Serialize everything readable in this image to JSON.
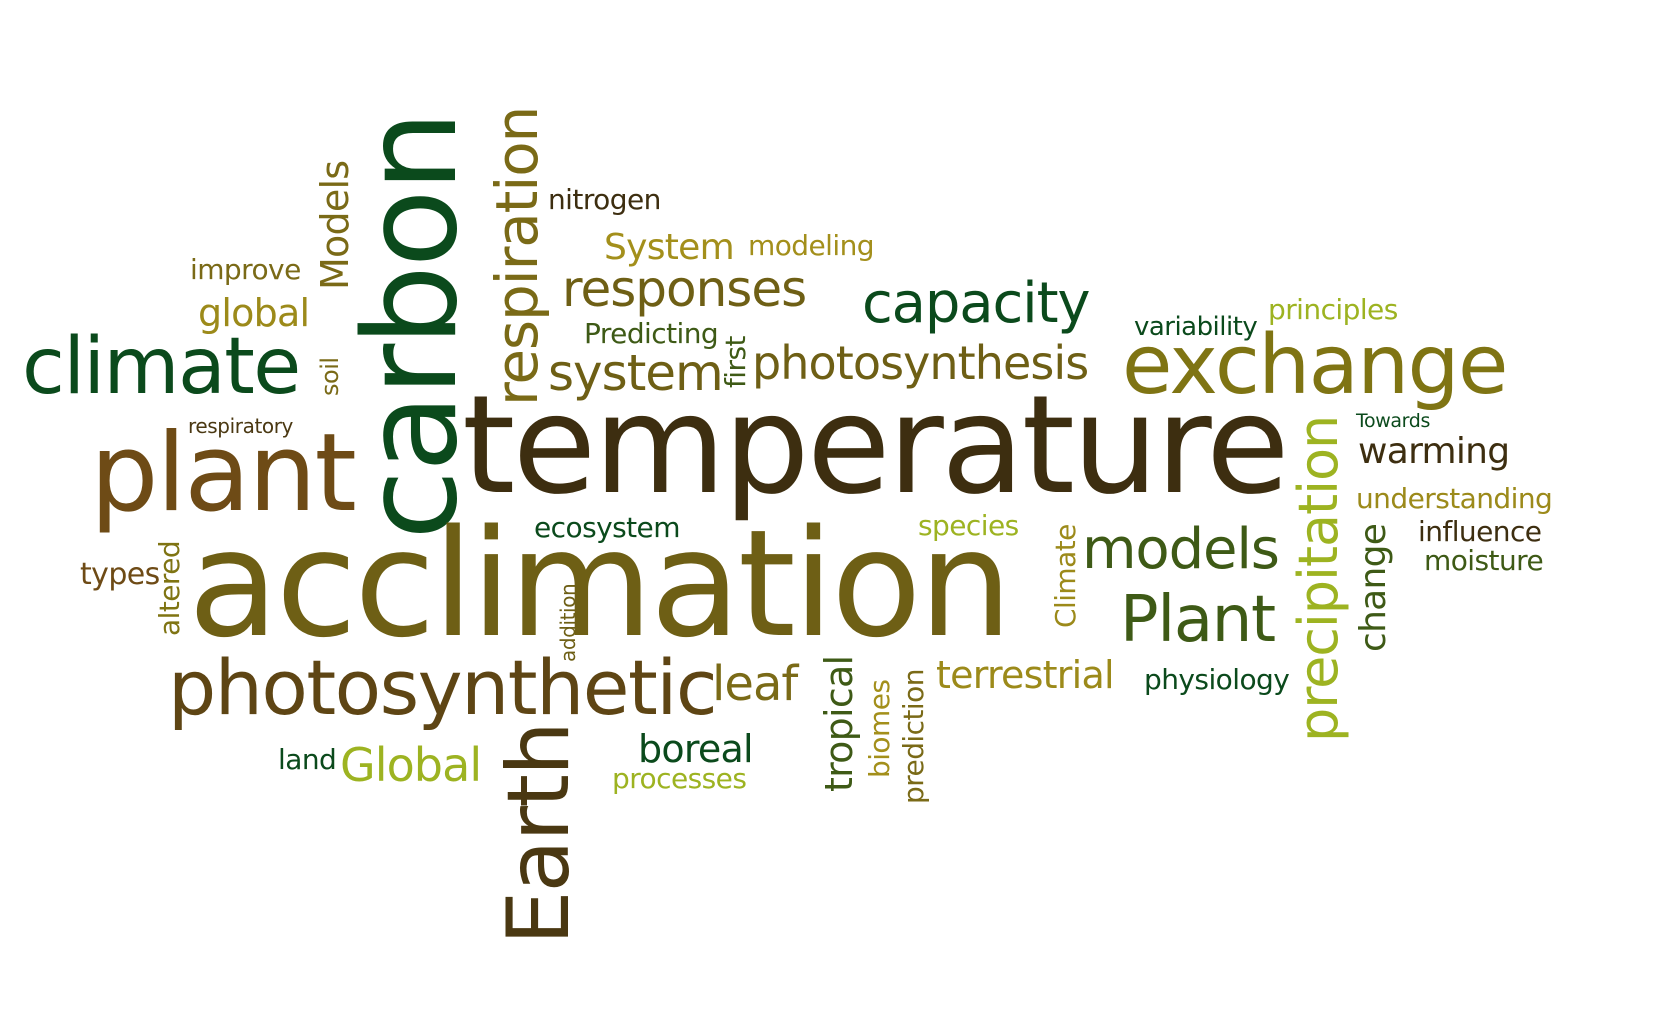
{
  "palette": {
    "dark_green": "#0b4a1c",
    "green": "#3e5a16",
    "dark_brown": "#3d2e10",
    "brown": "#6e4b16",
    "olive": "#6e5f15",
    "light_olive": "#8a9a1e",
    "yellow_green": "#9db321",
    "gold": "#9c8a1a"
  },
  "words": [
    {
      "id": "carbon",
      "text": "carbon",
      "color": "#0b4a1c",
      "orientation": "vertical"
    },
    {
      "id": "temperature",
      "text": "temperature",
      "color": "#3d2e10",
      "orientation": "horizontal"
    },
    {
      "id": "acclimation",
      "text": "acclimation",
      "color": "#6e5f15",
      "orientation": "horizontal"
    },
    {
      "id": "plant",
      "text": "plant",
      "color": "#6e4b16",
      "orientation": "horizontal"
    },
    {
      "id": "climate",
      "text": "climate",
      "color": "#0b4a1c",
      "orientation": "horizontal"
    },
    {
      "id": "exchange",
      "text": "exchange",
      "color": "#7f7413",
      "orientation": "horizontal"
    },
    {
      "id": "photosynthetic",
      "text": "photosynthetic",
      "color": "#5e4514",
      "orientation": "horizontal"
    },
    {
      "id": "earth",
      "text": "Earth",
      "color": "#4a3812",
      "orientation": "vertical"
    },
    {
      "id": "respiration",
      "text": "respiration",
      "color": "#7a6a17",
      "orientation": "vertical"
    },
    {
      "id": "photosynthesis",
      "text": "photosynthesis",
      "color": "#6e5f15",
      "orientation": "horizontal"
    },
    {
      "id": "capacity",
      "text": "capacity",
      "color": "#0b4a1c",
      "orientation": "horizontal"
    },
    {
      "id": "responses",
      "text": "responses",
      "color": "#6e5f15",
      "orientation": "horizontal"
    },
    {
      "id": "system",
      "text": "system",
      "color": "#6e5f15",
      "orientation": "horizontal"
    },
    {
      "id": "precipitation",
      "text": "precipitation",
      "color": "#9db321",
      "orientation": "vertical"
    },
    {
      "id": "models",
      "text": "models",
      "color": "#3e5a16",
      "orientation": "horizontal"
    },
    {
      "id": "plant-cap",
      "text": "Plant",
      "color": "#3e5a16",
      "orientation": "horizontal"
    },
    {
      "id": "models-cap",
      "text": "Models",
      "color": "#7a6a17",
      "orientation": "vertical"
    },
    {
      "id": "global",
      "text": "global",
      "color": "#9c8a1a",
      "orientation": "horizontal"
    },
    {
      "id": "improve",
      "text": "improve",
      "color": "#7a6a17",
      "orientation": "horizontal"
    },
    {
      "id": "nitrogen",
      "text": "nitrogen",
      "color": "#3d2e10",
      "orientation": "horizontal"
    },
    {
      "id": "system-cap",
      "text": "System",
      "color": "#a38f1b",
      "orientation": "horizontal"
    },
    {
      "id": "modeling",
      "text": "modeling",
      "color": "#a38f1b",
      "orientation": "horizontal"
    },
    {
      "id": "predicting",
      "text": "Predicting",
      "color": "#3e5a16",
      "orientation": "horizontal"
    },
    {
      "id": "first",
      "text": "first",
      "color": "#3e5a16",
      "orientation": "vertical"
    },
    {
      "id": "variability",
      "text": "variability",
      "color": "#0b4a1c",
      "orientation": "horizontal"
    },
    {
      "id": "principles",
      "text": "principles",
      "color": "#9db321",
      "orientation": "horizontal"
    },
    {
      "id": "soil",
      "text": "soil",
      "color": "#7a6a17",
      "orientation": "vertical"
    },
    {
      "id": "respiratory",
      "text": "respiratory",
      "color": "#4a3812",
      "orientation": "horizontal"
    },
    {
      "id": "towards",
      "text": "Towards",
      "color": "#0b4a1c",
      "orientation": "horizontal"
    },
    {
      "id": "warming",
      "text": "warming",
      "color": "#3d2e10",
      "orientation": "horizontal"
    },
    {
      "id": "understanding",
      "text": "understanding",
      "color": "#9c8a1a",
      "orientation": "horizontal"
    },
    {
      "id": "influence",
      "text": "influence",
      "color": "#3d2e10",
      "orientation": "horizontal"
    },
    {
      "id": "moisture",
      "text": "moisture",
      "color": "#3e5a16",
      "orientation": "horizontal"
    },
    {
      "id": "ecosystem",
      "text": "ecosystem",
      "color": "#0b4a1c",
      "orientation": "horizontal"
    },
    {
      "id": "species",
      "text": "species",
      "color": "#9db321",
      "orientation": "horizontal"
    },
    {
      "id": "climate-cap",
      "text": "Climate",
      "color": "#9c8a1a",
      "orientation": "vertical"
    },
    {
      "id": "change",
      "text": "change",
      "color": "#3e5a16",
      "orientation": "vertical"
    },
    {
      "id": "types",
      "text": "types",
      "color": "#6e4b16",
      "orientation": "horizontal"
    },
    {
      "id": "altered",
      "text": "altered",
      "color": "#7f7413",
      "orientation": "vertical"
    },
    {
      "id": "addition",
      "text": "addition",
      "color": "#6e5f15",
      "orientation": "vertical"
    },
    {
      "id": "leaf",
      "text": "leaf",
      "color": "#7a6a17",
      "orientation": "horizontal"
    },
    {
      "id": "terrestrial",
      "text": "terrestrial",
      "color": "#9c8a1a",
      "orientation": "horizontal"
    },
    {
      "id": "physiology",
      "text": "physiology",
      "color": "#0b4a1c",
      "orientation": "horizontal"
    },
    {
      "id": "tropical",
      "text": "tropical",
      "color": "#3e5a16",
      "orientation": "vertical"
    },
    {
      "id": "biomes",
      "text": "biomes",
      "color": "#a38f1b",
      "orientation": "vertical"
    },
    {
      "id": "prediction",
      "text": "prediction",
      "color": "#7a6a17",
      "orientation": "vertical"
    },
    {
      "id": "boreal",
      "text": "boreal",
      "color": "#0b4a1c",
      "orientation": "horizontal"
    },
    {
      "id": "processes",
      "text": "processes",
      "color": "#9db321",
      "orientation": "horizontal"
    },
    {
      "id": "land",
      "text": "land",
      "color": "#0b4a1c",
      "orientation": "horizontal"
    },
    {
      "id": "global-cap",
      "text": "Global",
      "color": "#9db321",
      "orientation": "horizontal"
    }
  ]
}
